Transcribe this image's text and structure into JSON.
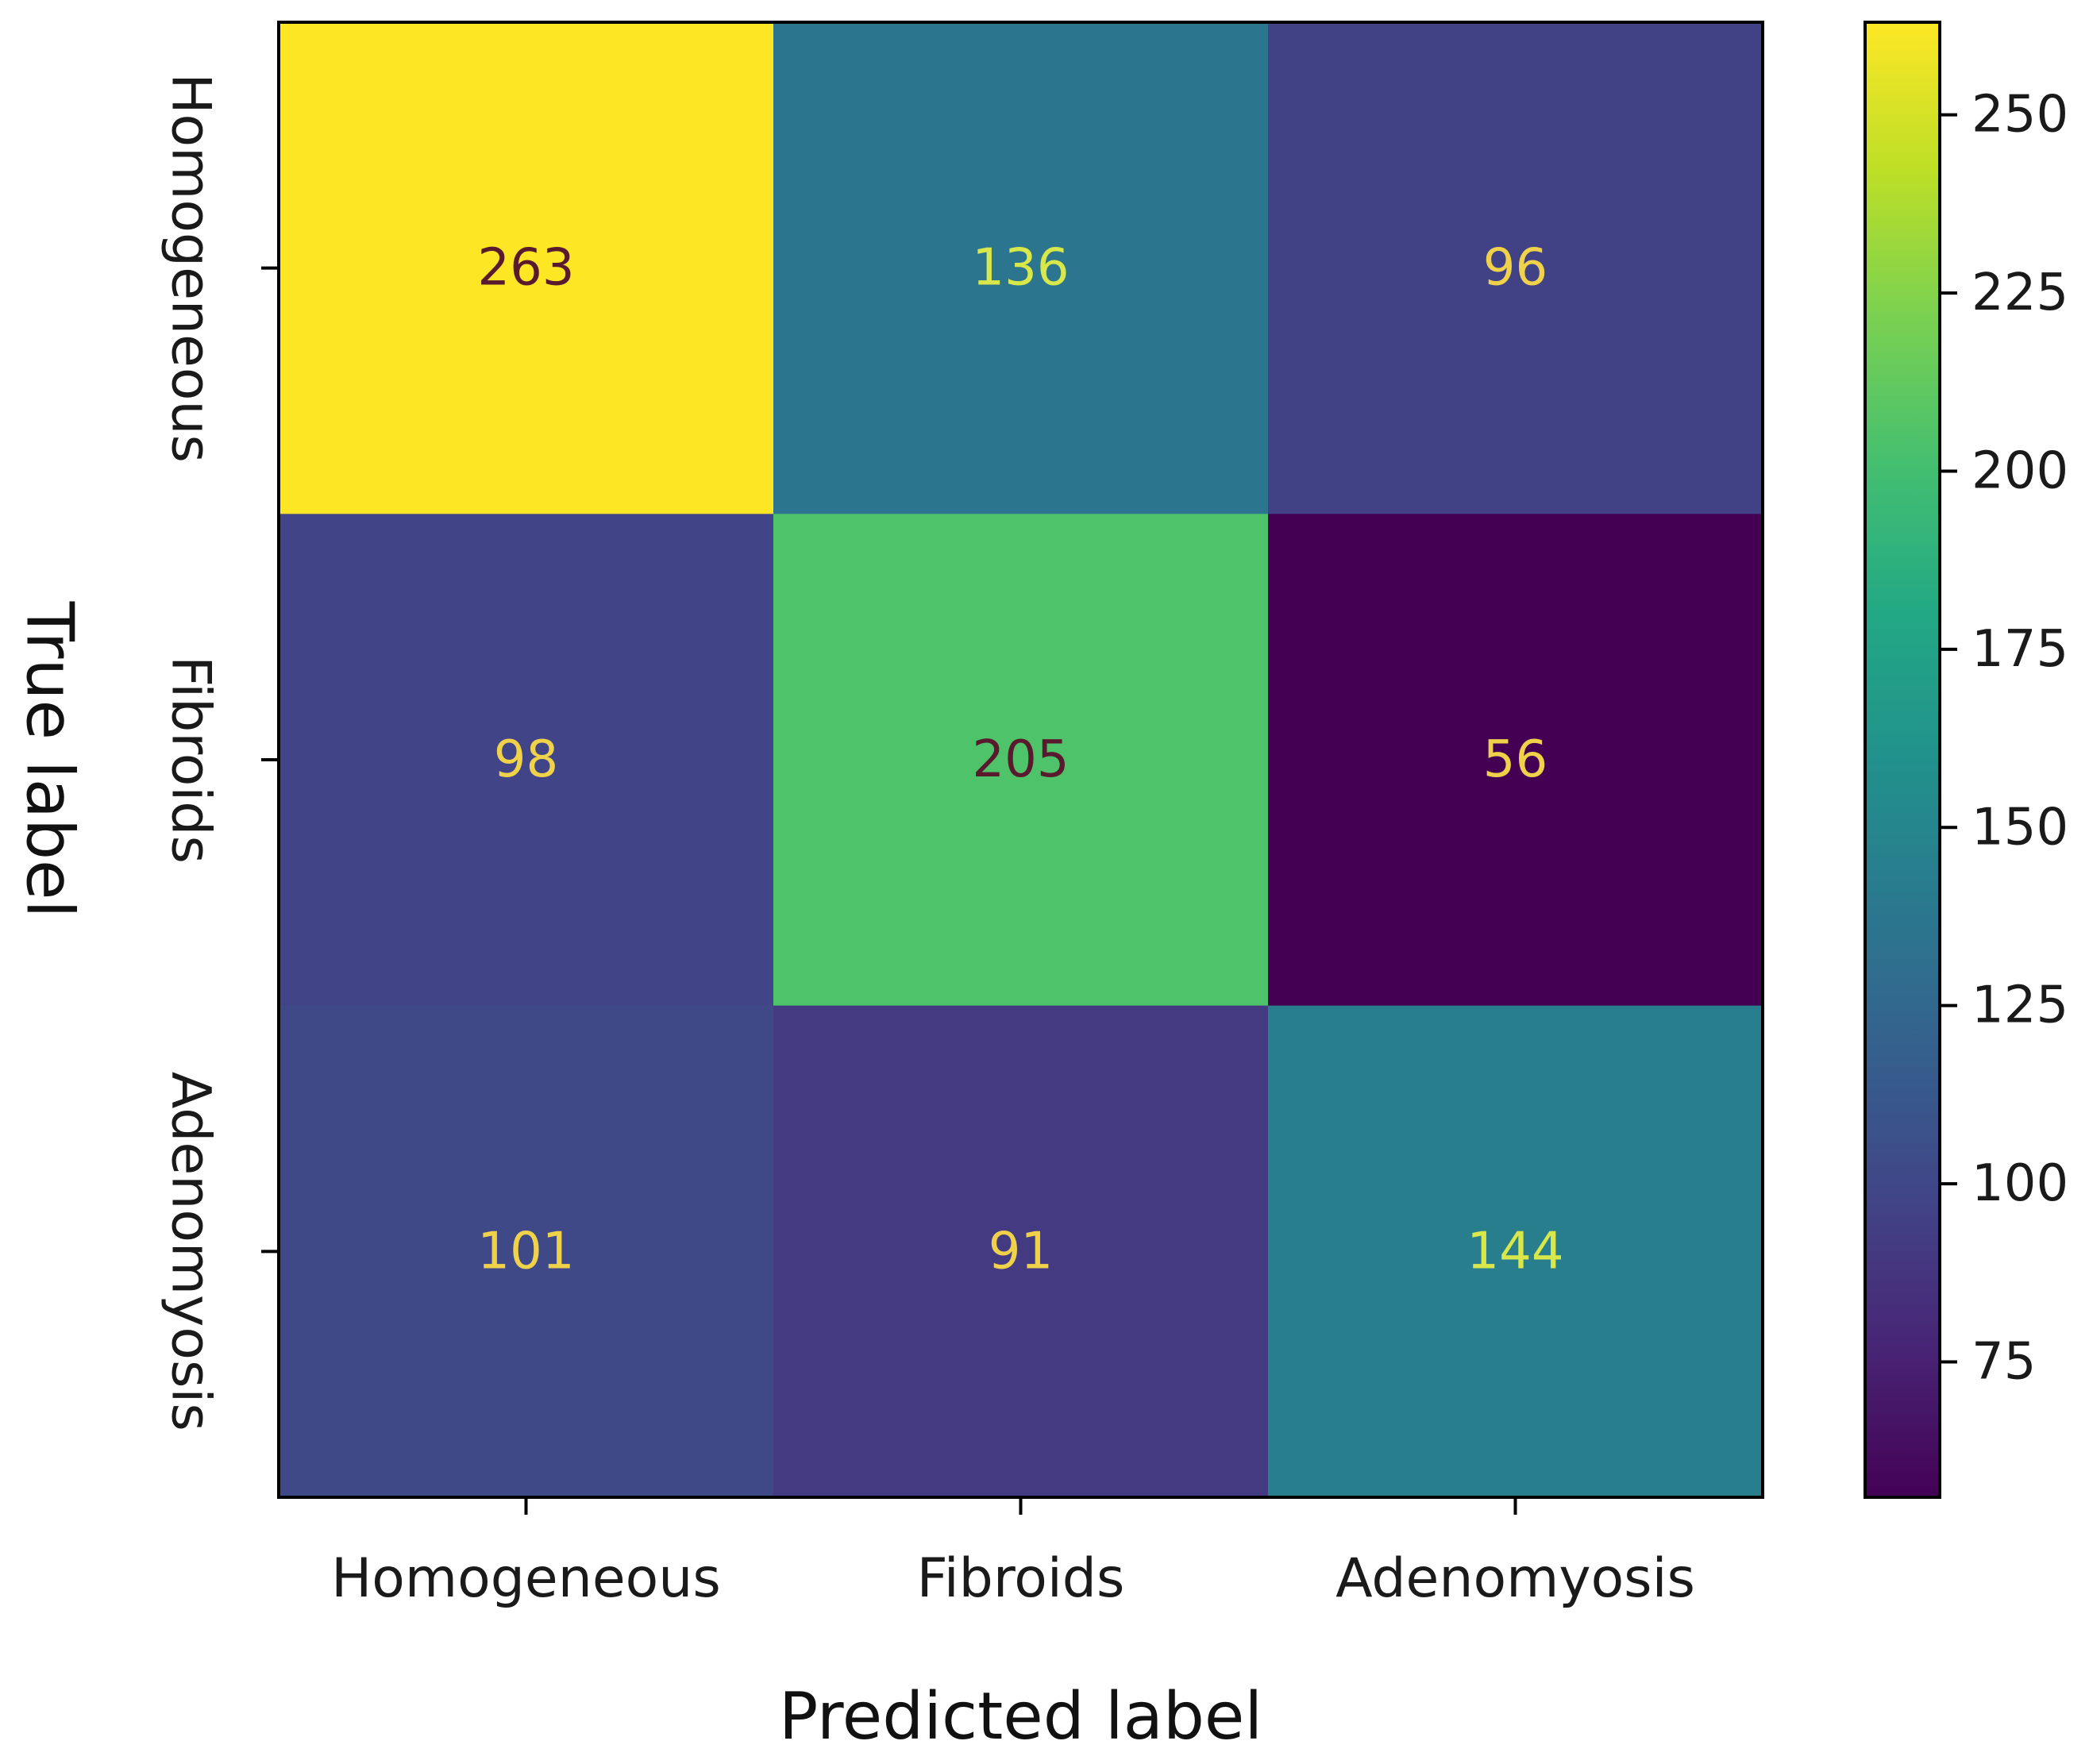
{
  "chart_data": {
    "type": "heatmap",
    "title": "",
    "xlabel": "Predicted label",
    "ylabel": "True label",
    "x_categories": [
      "Homogeneous",
      "Fibroids",
      "Adenomyosis"
    ],
    "y_categories": [
      "Homogeneous",
      "Fibroids",
      "Adenomyosis"
    ],
    "matrix": [
      [
        263,
        136,
        96
      ],
      [
        98,
        205,
        56
      ],
      [
        101,
        91,
        144
      ]
    ],
    "colormap": "viridis",
    "color_range": [
      56,
      263
    ],
    "colorbar_ticks": [
      75,
      100,
      125,
      150,
      175,
      200,
      225,
      250
    ],
    "colorbar_tick_labels": [
      "75",
      "100",
      "125",
      "150",
      "175",
      "200",
      "225",
      "250"
    ]
  }
}
